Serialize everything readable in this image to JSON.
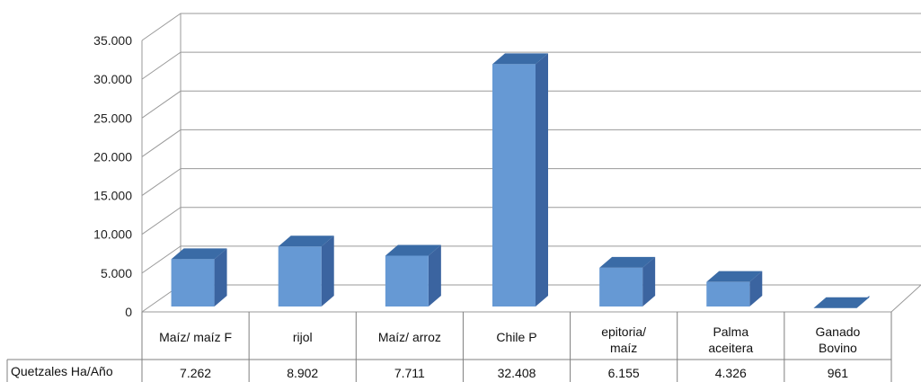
{
  "chart_data": {
    "type": "bar",
    "title": "",
    "xlabel": "",
    "ylabel": "",
    "categories": [
      [
        "Maíz/ maíz F"
      ],
      [
        "rijol"
      ],
      [
        "Maíz/ arroz"
      ],
      [
        "Chile P"
      ],
      [
        "epitoria/",
        "maíz"
      ],
      [
        "Palma",
        "aceitera"
      ],
      [
        "Ganado",
        "Bovino"
      ]
    ],
    "series": [
      {
        "name": "Quetzales Ha/Año",
        "values": [
          7262,
          8902,
          7711,
          32408,
          6155,
          4326,
          961
        ],
        "value_labels": [
          "7.262",
          "8.902",
          "7.711",
          "32.408",
          "6.155",
          "4.326",
          "961"
        ]
      }
    ],
    "ylim": [
      0,
      35000
    ],
    "yticks": [
      0,
      5000,
      10000,
      15000,
      20000,
      25000,
      30000,
      35000
    ],
    "ytick_labels": [
      "0",
      "5.000",
      "10.000",
      "15.000",
      "20.000",
      "25.000",
      "30.000",
      "35.000"
    ],
    "grid": true,
    "legend": "data-table",
    "colors": {
      "bar_front": "#6699D4",
      "bar_top": "#3A6BA6",
      "bar_side": "#3B64A0",
      "grid": "#9a9a9a"
    }
  }
}
